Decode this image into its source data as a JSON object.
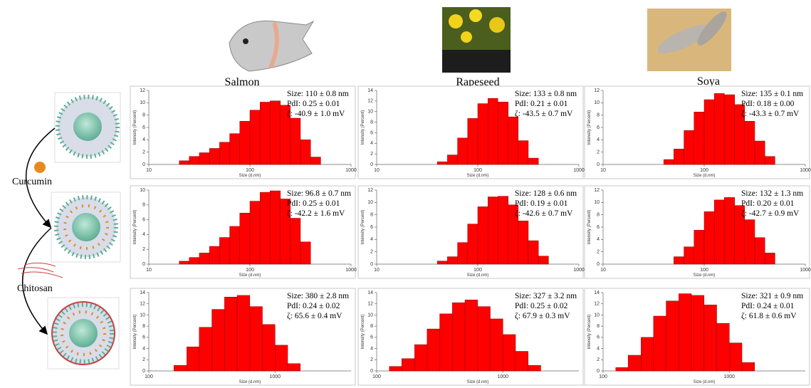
{
  "columns": [
    "Salmon",
    "Rapeseed",
    "Soya"
  ],
  "steps": [
    "Curcumin",
    "Chitosan"
  ],
  "chart_data": [
    {
      "type": "histogram",
      "xlabel": "Size (d.nm)",
      "ylabel": "Intensity (Percent)",
      "color": "#ff0000",
      "log_x": true,
      "xlim": [
        10,
        1000
      ],
      "xticks": [
        10,
        100,
        1000
      ],
      "ylim": [
        0,
        12
      ],
      "yticks": [
        0,
        2,
        4,
        6,
        8,
        10,
        12
      ],
      "bins": [
        20,
        25.1,
        31.6,
        39.8,
        50.1,
        63.1,
        79.4,
        100,
        126,
        158,
        200,
        251,
        316,
        398,
        501
      ],
      "values": [
        0.6,
        1.3,
        1.9,
        2.6,
        3.6,
        5.0,
        7.0,
        8.8,
        10.1,
        10.3,
        9.6,
        7.5,
        4.0,
        1.2
      ],
      "annotations": [
        "Size: 110 ± 0.8 nm",
        "PdI: 0.25 ± 0.01",
        "ζ: -40.9 ± 1.0 mV"
      ]
    },
    {
      "type": "histogram",
      "xlabel": "Size (d.nm)",
      "ylabel": "Intensity (Percent)",
      "color": "#ff0000",
      "log_x": true,
      "xlim": [
        10,
        1000
      ],
      "xticks": [
        10,
        100,
        1000
      ],
      "ylim": [
        0,
        14
      ],
      "yticks": [
        0,
        2,
        4,
        6,
        8,
        10,
        12,
        14
      ],
      "bins": [
        39.8,
        50.1,
        63.1,
        79.4,
        100,
        126,
        158,
        200,
        251,
        316,
        398
      ],
      "values": [
        0.5,
        1.8,
        5.0,
        8.7,
        11.5,
        12.5,
        11.8,
        9.0,
        4.5,
        1.2
      ],
      "annotations": [
        "Size: 133 ± 0.8 nm",
        "PdI: 0.21 ± 0.01",
        "ζ: -43.5 ± 0.7 mV"
      ]
    },
    {
      "type": "histogram",
      "xlabel": "Size (d.nm)",
      "ylabel": "Intensity (Percent)",
      "color": "#ff0000",
      "log_x": true,
      "xlim": [
        10,
        1000
      ],
      "xticks": [
        10,
        100,
        1000
      ],
      "ylim": [
        0,
        12
      ],
      "yticks": [
        0,
        2,
        4,
        6,
        8,
        10,
        12
      ],
      "bins": [
        39.8,
        50.1,
        63.1,
        79.4,
        100,
        126,
        158,
        200,
        251,
        316,
        398,
        501
      ],
      "values": [
        0.8,
        2.5,
        5.5,
        8.5,
        10.5,
        11.5,
        11.3,
        9.7,
        7.0,
        3.8,
        1.3
      ],
      "annotations": [
        "Size: 135 ± 0.1 nm",
        "PdI: 0.18 ± 0.00",
        "ζ: -43.3 ± 0.7 mV"
      ]
    },
    {
      "type": "histogram",
      "xlabel": "Size (d.nm)",
      "ylabel": "Intensity (Percent)",
      "color": "#ff0000",
      "log_x": true,
      "xlim": [
        10,
        1000
      ],
      "xticks": [
        10,
        100,
        1000
      ],
      "ylim": [
        0,
        10
      ],
      "yticks": [
        0,
        2,
        4,
        6,
        8,
        10
      ],
      "bins": [
        20,
        25.1,
        31.6,
        39.8,
        50.1,
        63.1,
        79.4,
        100,
        126,
        158,
        200,
        251,
        316,
        398
      ],
      "values": [
        0.4,
        0.9,
        1.5,
        2.4,
        3.6,
        5.1,
        6.9,
        8.5,
        9.7,
        9.9,
        8.8,
        6.2,
        3.0
      ],
      "annotations": [
        "Size: 96.8 ± 0.7 nm",
        "PdI: 0.25 ± 0.01",
        "ζ: -42.2 ± 1.6 mV"
      ]
    },
    {
      "type": "histogram",
      "xlabel": "Size (d.nm)",
      "ylabel": "Intensity (Percent)",
      "color": "#ff0000",
      "log_x": true,
      "xlim": [
        10,
        1000
      ],
      "xticks": [
        10,
        100,
        1000
      ],
      "ylim": [
        0,
        12
      ],
      "yticks": [
        0,
        2,
        4,
        6,
        8,
        10,
        12
      ],
      "bins": [
        39.8,
        50.1,
        63.1,
        79.4,
        100,
        126,
        158,
        200,
        251,
        316,
        398,
        501
      ],
      "values": [
        0.5,
        1.2,
        3.5,
        6.5,
        9.3,
        10.9,
        11.0,
        9.6,
        7.0,
        3.8,
        1.3
      ],
      "annotations": [
        "Size: 128 ± 0.6 nm",
        "PdI: 0.19 ± 0.01",
        "ζ: -42.6 ± 0.7 mV"
      ]
    },
    {
      "type": "histogram",
      "xlabel": "Size (d.nm)",
      "ylabel": "Intensity (Percent)",
      "color": "#ff0000",
      "log_x": true,
      "xlim": [
        10,
        1000
      ],
      "xticks": [
        10,
        100,
        1000
      ],
      "ylim": [
        0,
        12
      ],
      "yticks": [
        0,
        2,
        4,
        6,
        8,
        10,
        12
      ],
      "bins": [
        50.1,
        63.1,
        79.4,
        100,
        126,
        158,
        200,
        251,
        316,
        398,
        501
      ],
      "values": [
        1.2,
        2.8,
        5.5,
        8.5,
        10.4,
        10.8,
        9.5,
        7.2,
        4.3,
        1.8
      ],
      "annotations": [
        "Size: 132 ± 1.3 nm",
        "PdI: 0.20 ± 0.01",
        "ζ: -42.7 ± 0.9 mV"
      ]
    },
    {
      "type": "histogram",
      "xlabel": "Size (d.nm)",
      "ylabel": "Intensity (Percent)",
      "color": "#ff0000",
      "log_x": true,
      "xlim": [
        100,
        4000
      ],
      "xticks": [
        100,
        1000
      ],
      "ylim": [
        0,
        14
      ],
      "yticks": [
        0,
        2,
        4,
        6,
        8,
        10,
        12,
        14
      ],
      "bins": [
        158,
        200,
        251,
        316,
        398,
        501,
        631,
        794,
        1000,
        1259,
        1585
      ],
      "values": [
        1.0,
        4.3,
        7.8,
        11.0,
        13.2,
        13.5,
        11.5,
        8.3,
        4.6,
        1.3
      ],
      "annotations": [
        "Size: 380 ± 2.8 nm",
        "PdI: 0.24 ± 0.02",
        "ζ: 65.6 ± 0.4 mV"
      ]
    },
    {
      "type": "histogram",
      "xlabel": "Size (d.nm)",
      "ylabel": "Intensity (Percent)",
      "color": "#ff0000",
      "log_x": true,
      "xlim": [
        100,
        4000
      ],
      "xticks": [
        100,
        1000
      ],
      "ylim": [
        0,
        14
      ],
      "yticks": [
        0,
        2,
        4,
        6,
        8,
        10,
        12,
        14
      ],
      "bins": [
        126,
        158,
        200,
        251,
        316,
        398,
        501,
        631,
        794,
        1000,
        1259,
        1585,
        1995
      ],
      "values": [
        0.8,
        2.2,
        4.7,
        7.5,
        10.2,
        12.2,
        12.7,
        11.5,
        9.3,
        6.5,
        3.5,
        1.0
      ],
      "annotations": [
        "Size: 327 ± 3.2 nm",
        "PdI: 0.25 ± 0.02",
        "ζ: 67.9 ± 0.3 mV"
      ]
    },
    {
      "type": "histogram",
      "xlabel": "Size (d.nm)",
      "ylabel": "Intensity (Percent)",
      "color": "#ff0000",
      "log_x": true,
      "xlim": [
        100,
        4000
      ],
      "xticks": [
        100,
        1000
      ],
      "ylim": [
        0,
        14
      ],
      "yticks": [
        0,
        2,
        4,
        6,
        8,
        10,
        12,
        14
      ],
      "bins": [
        126,
        158,
        200,
        251,
        316,
        398,
        501,
        631,
        794,
        1000,
        1259,
        1585
      ],
      "values": [
        0.6,
        2.8,
        6.0,
        9.8,
        12.5,
        13.8,
        13.5,
        11.8,
        8.5,
        5.0,
        1.5
      ],
      "annotations": [
        "Size: 321 ± 0.9 nm",
        "PdI: 0.24 ± 0.01",
        "ζ: 61.8 ± 0.6 mV"
      ]
    }
  ]
}
